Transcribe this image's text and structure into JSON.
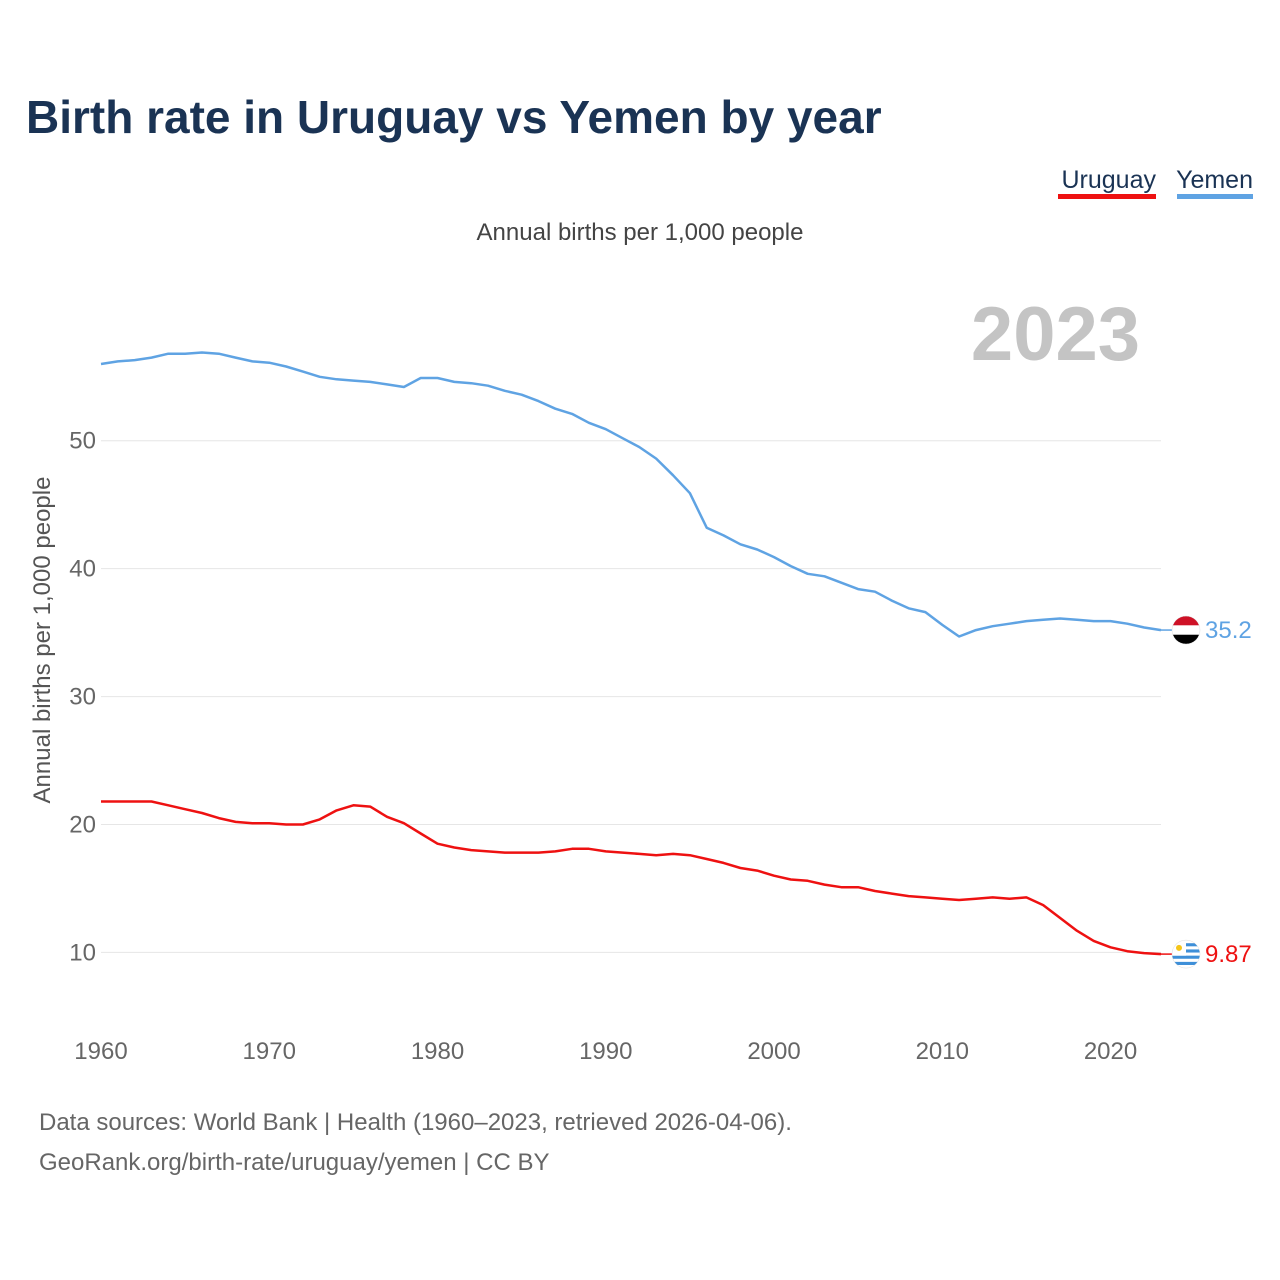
{
  "chart_data": {
    "type": "line",
    "title": "Birth rate in Uruguay vs Yemen by year",
    "subtitle": "Annual births per 1,000 people",
    "ylabel": "Annual births per 1,000 people",
    "xlabel": "",
    "year_label": "2023",
    "xlim": [
      1960,
      2023
    ],
    "ylim": [
      5.5,
      61
    ],
    "yticks": [
      10,
      20,
      30,
      40,
      50
    ],
    "xticks": [
      1960,
      1970,
      1980,
      1990,
      2000,
      2010,
      2020
    ],
    "grid": true,
    "legend_position": "top-right",
    "x": [
      1960,
      1961,
      1962,
      1963,
      1964,
      1965,
      1966,
      1967,
      1968,
      1969,
      1970,
      1971,
      1972,
      1973,
      1974,
      1975,
      1976,
      1977,
      1978,
      1979,
      1980,
      1981,
      1982,
      1983,
      1984,
      1985,
      1986,
      1987,
      1988,
      1989,
      1990,
      1991,
      1992,
      1993,
      1994,
      1995,
      1996,
      1997,
      1998,
      1999,
      2000,
      2001,
      2002,
      2003,
      2004,
      2005,
      2006,
      2007,
      2008,
      2009,
      2010,
      2011,
      2012,
      2013,
      2014,
      2015,
      2016,
      2017,
      2018,
      2019,
      2020,
      2021,
      2022,
      2023
    ],
    "series": [
      {
        "name": "Uruguay",
        "color": "#ee1111",
        "end_label": "9.87",
        "flag": "uruguay",
        "values": [
          21.8,
          21.8,
          21.8,
          21.8,
          21.5,
          21.2,
          20.9,
          20.5,
          20.2,
          20.1,
          20.1,
          20.0,
          20.0,
          20.4,
          21.1,
          21.5,
          21.4,
          20.6,
          20.1,
          19.3,
          18.5,
          18.2,
          18.0,
          17.9,
          17.8,
          17.8,
          17.8,
          17.9,
          18.1,
          18.1,
          17.9,
          17.8,
          17.7,
          17.6,
          17.7,
          17.6,
          17.3,
          17.0,
          16.6,
          16.4,
          16.0,
          15.7,
          15.6,
          15.3,
          15.1,
          15.1,
          14.8,
          14.6,
          14.4,
          14.3,
          14.2,
          14.1,
          14.2,
          14.3,
          14.2,
          14.3,
          13.7,
          12.7,
          11.7,
          10.9,
          10.4,
          10.1,
          9.95,
          9.87
        ]
      },
      {
        "name": "Yemen",
        "color": "#5fa3e3",
        "end_label": "35.2",
        "flag": "yemen",
        "values": [
          56.0,
          56.2,
          56.3,
          56.5,
          56.8,
          56.8,
          56.9,
          56.8,
          56.5,
          56.2,
          56.1,
          55.8,
          55.4,
          55.0,
          54.8,
          54.7,
          54.6,
          54.4,
          54.2,
          54.9,
          54.9,
          54.6,
          54.5,
          54.3,
          53.9,
          53.6,
          53.1,
          52.5,
          52.1,
          51.4,
          50.9,
          50.2,
          49.5,
          48.6,
          47.3,
          45.9,
          43.2,
          42.6,
          41.9,
          41.5,
          40.9,
          40.2,
          39.6,
          39.4,
          38.9,
          38.4,
          38.2,
          37.5,
          36.9,
          36.6,
          35.6,
          34.7,
          35.2,
          35.5,
          35.7,
          35.9,
          36.0,
          36.1,
          36.0,
          35.9,
          35.9,
          35.7,
          35.4,
          35.2
        ]
      }
    ]
  },
  "source": {
    "line1": "Data sources: World Bank | Health (1960–2023, retrieved 2026-04-06).",
    "line2": "GeoRank.org/birth-rate/uruguay/yemen | CC BY"
  }
}
